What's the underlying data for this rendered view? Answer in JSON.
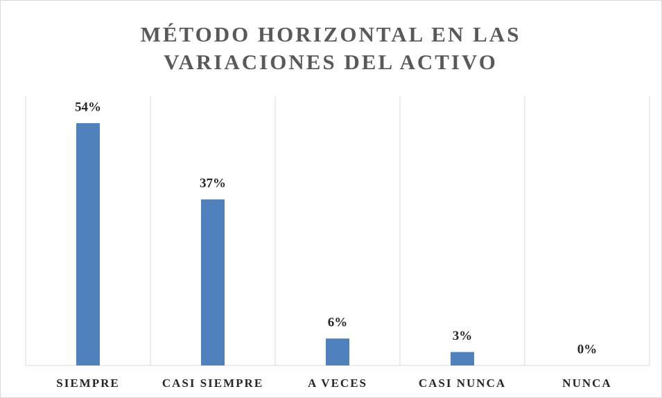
{
  "chart_data": {
    "type": "bar",
    "title": "MÉTODO HORIZONTAL EN LAS VARIACIONES DEL ACTIVO",
    "categories": [
      "SIEMPRE",
      "CASI SIEMPRE",
      "A VECES",
      "CASI NUNCA",
      "NUNCA"
    ],
    "values": [
      54,
      37,
      6,
      3,
      0
    ],
    "value_labels": [
      "54%",
      "37%",
      "6%",
      "3%",
      "0%"
    ],
    "color": "#4f81bd",
    "ylim": [
      0,
      60
    ]
  }
}
